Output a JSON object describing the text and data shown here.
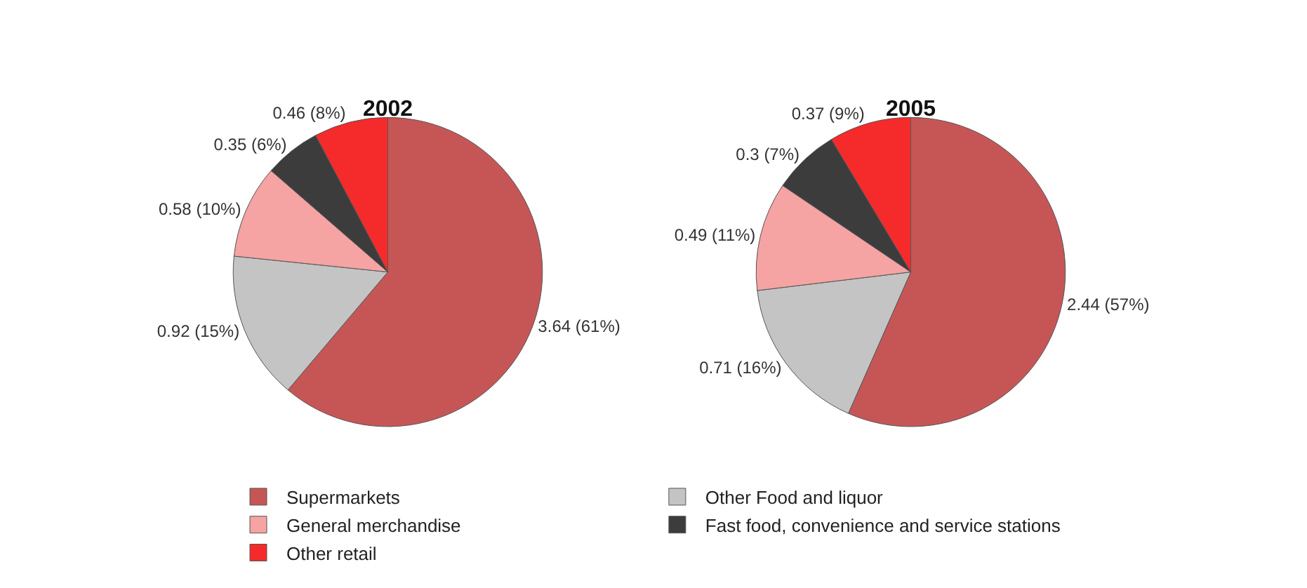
{
  "chart_data": [
    {
      "type": "pie",
      "title": "2002",
      "categories": [
        "Supermarkets",
        "Other Food and liquor",
        "General merchandise",
        "Fast food, convenience and service stations",
        "Other retail"
      ],
      "values": [
        3.64,
        0.92,
        0.58,
        0.35,
        0.46
      ],
      "value_labels": [
        "3.64 (61%)",
        "0.92 (15%)",
        "0.58 (10%)",
        "0.35 (6%)",
        "0.46 (8%)"
      ],
      "colors": [
        "#c65656",
        "#c4c4c4",
        "#f5a3a3",
        "#3c3c3c",
        "#f52a2a"
      ],
      "legend": "bottom"
    },
    {
      "type": "pie",
      "title": "2005",
      "categories": [
        null,
        null,
        null,
        null,
        null
      ],
      "values": [
        2.44,
        0.71,
        0.49,
        0.3,
        0.37
      ],
      "value_labels": [
        "2.44 (57%)",
        "0.71 (16%)",
        "0.49 (11%)",
        "0.3 (7%)",
        "0.37 (9%)"
      ],
      "colors": [
        "#c65656",
        "#c4c4c4",
        "#f5a3a3",
        "#3c3c3c",
        "#f52a2a"
      ]
    }
  ]
}
